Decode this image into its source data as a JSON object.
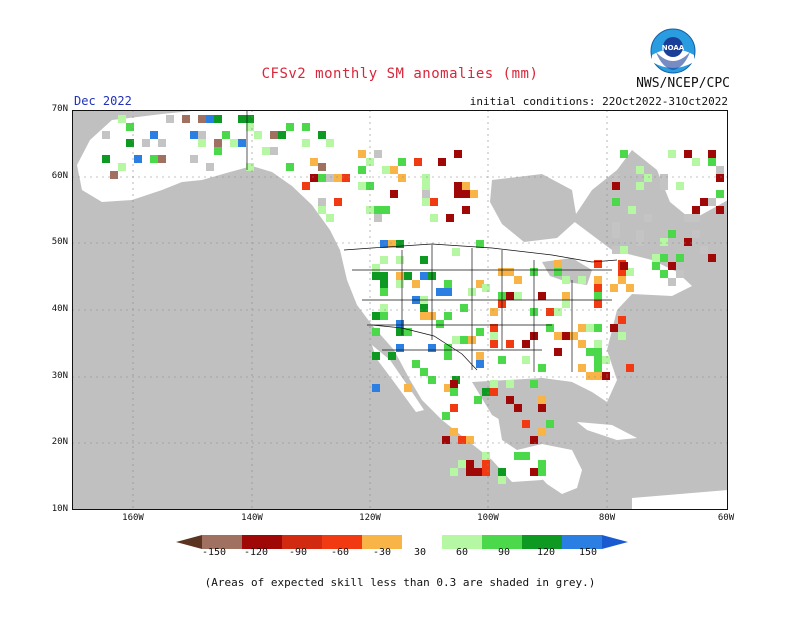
{
  "header": {
    "title": "CFSv2 monthly SM anomalies (mm)",
    "agency": "NWS/NCEP/CPC",
    "period": "Dec 2022",
    "initial_conditions": "initial conditions: 22Oct2022-31Oct2022",
    "logo_text": "NOAA"
  },
  "axes": {
    "lat_labels": [
      "70N",
      "60N",
      "50N",
      "40N",
      "30N",
      "20N",
      "10N"
    ],
    "lon_labels": [
      "160W",
      "140W",
      "120W",
      "100W",
      "80W",
      "60W"
    ]
  },
  "colorbar": {
    "labels": [
      "-150",
      "-120",
      "-90",
      "-60",
      "-30",
      "30",
      "60",
      "90",
      "120",
      "150"
    ],
    "colors": [
      "#5a3420",
      "#a07060",
      "#a00808",
      "#d22a10",
      "#f23a12",
      "#f9b448",
      "#ffffff",
      "#b6f7a4",
      "#4bd84b",
      "#0e9a22",
      "#2b7fe2",
      "#1a5ad0"
    ]
  },
  "footnote": "(Areas of expected skill less than 0.3 are shaded in grey.)",
  "map_colors": {
    "ocean": "#c0c0c0",
    "land": "#ffffff",
    "grey": "#c4c4c4"
  }
}
